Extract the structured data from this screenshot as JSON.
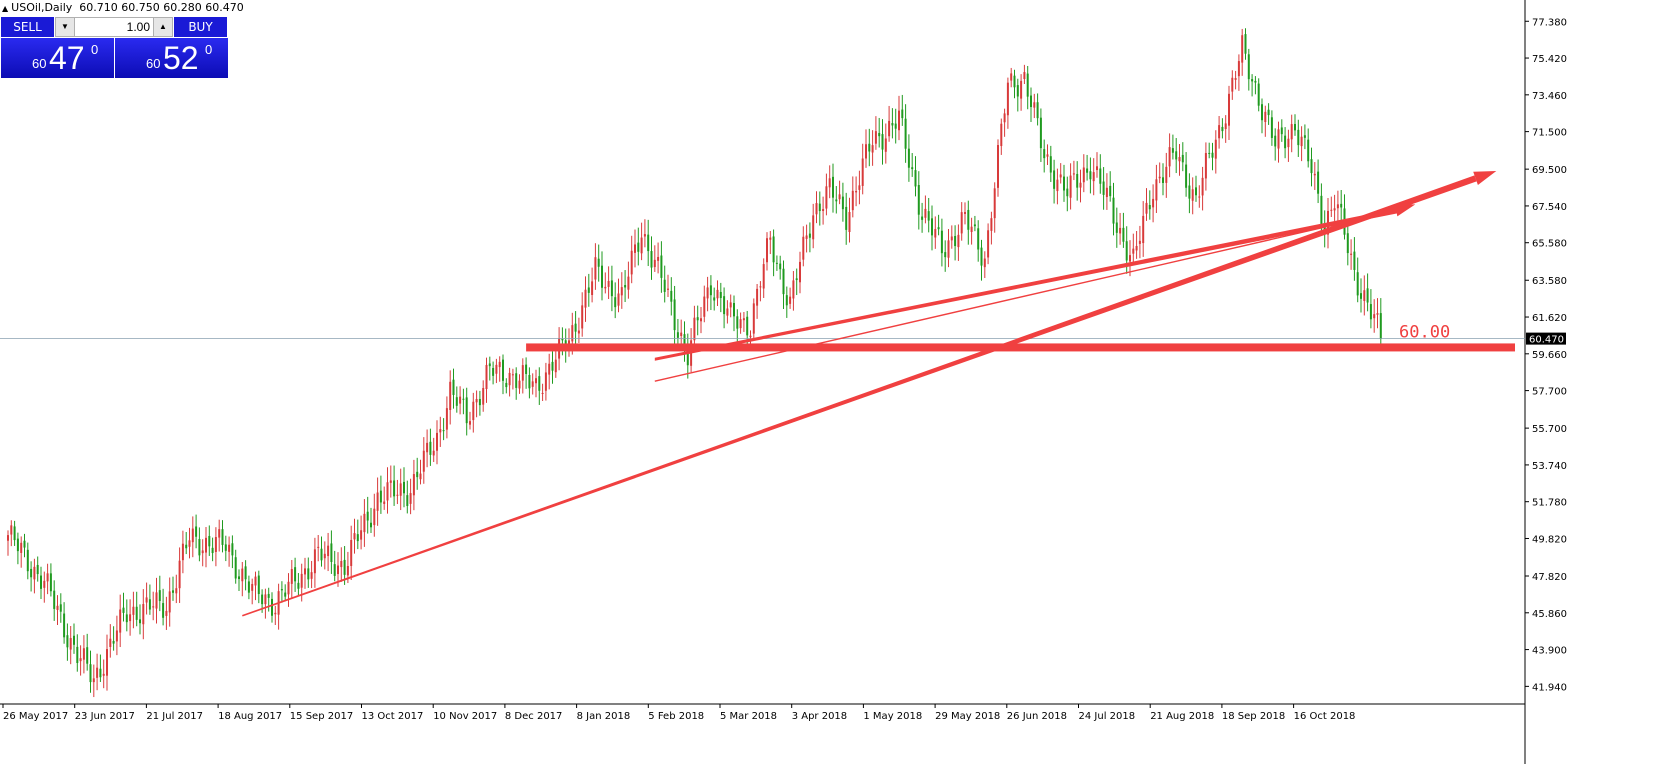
{
  "header": {
    "symbol": "USOil,Daily",
    "ohlc": "60.710 60.750 60.280 60.470"
  },
  "trade_panel": {
    "sell_label": "SELL",
    "buy_label": "BUY",
    "lot": "1.00",
    "sell_quote": {
      "small": "60",
      "big": "47",
      "sup": "0"
    },
    "buy_quote": {
      "small": "60",
      "big": "52",
      "sup": "0"
    }
  },
  "colors": {
    "bull": "#d83a3a",
    "bear": "#1f9a1f",
    "drawing": "#f04040",
    "panel": "#1a1ad6"
  },
  "chart_data": {
    "type": "candlestick",
    "symbol": "USOil",
    "timeframe": "Daily",
    "ylim": [
      41.0,
      78.3
    ],
    "y_ticks": [
      77.38,
      75.42,
      73.46,
      71.5,
      69.5,
      67.54,
      65.58,
      63.58,
      61.62,
      59.66,
      57.7,
      55.7,
      53.74,
      51.78,
      49.82,
      47.82,
      45.86,
      43.9,
      41.94
    ],
    "x_ticks": [
      "26 May 2017",
      "23 Jun 2017",
      "21 Jul 2017",
      "18 Aug 2017",
      "15 Sep 2017",
      "13 Oct 2017",
      "10 Nov 2017",
      "8 Dec 2017",
      "8 Jan 2018",
      "5 Feb 2018",
      "5 Mar 2018",
      "3 Apr 2018",
      "1 May 2018",
      "29 May 2018",
      "26 Jun 2018",
      "24 Jul 2018",
      "21 Aug 2018",
      "18 Sep 2018",
      "16 Oct 2018"
    ],
    "close_path": [
      [
        0,
        50.0
      ],
      [
        11,
        47.5
      ],
      [
        21,
        43.6
      ],
      [
        26,
        42.3
      ],
      [
        36,
        45.9
      ],
      [
        48,
        46.3
      ],
      [
        55,
        49.8
      ],
      [
        66,
        49.4
      ],
      [
        74,
        47.0
      ],
      [
        81,
        46.4
      ],
      [
        94,
        48.9
      ],
      [
        102,
        48.4
      ],
      [
        112,
        52.0
      ],
      [
        122,
        52.5
      ],
      [
        130,
        55.2
      ],
      [
        134,
        57.6
      ],
      [
        139,
        56.3
      ],
      [
        146,
        58.7
      ],
      [
        152,
        58.6
      ],
      [
        160,
        57.9
      ],
      [
        170,
        60.4
      ],
      [
        178,
        64.0
      ],
      [
        186,
        62.6
      ],
      [
        192,
        66.3
      ],
      [
        198,
        63.6
      ],
      [
        206,
        59.6
      ],
      [
        213,
        63.5
      ],
      [
        219,
        61.5
      ],
      [
        225,
        61.3
      ],
      [
        231,
        65.7
      ],
      [
        237,
        62.3
      ],
      [
        244,
        67.3
      ],
      [
        249,
        68.3
      ],
      [
        254,
        67.1
      ],
      [
        262,
        71.0
      ],
      [
        270,
        72.1
      ],
      [
        277,
        67.2
      ],
      [
        283,
        65.2
      ],
      [
        290,
        66.8
      ],
      [
        296,
        64.8
      ],
      [
        303,
        74.0
      ],
      [
        308,
        74.4
      ],
      [
        314,
        70.2
      ],
      [
        321,
        68.2
      ],
      [
        328,
        69.8
      ],
      [
        334,
        67.5
      ],
      [
        341,
        64.5
      ],
      [
        347,
        68.6
      ],
      [
        354,
        70.3
      ],
      [
        360,
        67.9
      ],
      [
        368,
        72.1
      ],
      [
        374,
        75.8
      ],
      [
        378,
        73.9
      ],
      [
        384,
        70.7
      ],
      [
        390,
        71.9
      ],
      [
        395,
        69.4
      ],
      [
        399,
        66.6
      ],
      [
        402,
        67.9
      ],
      [
        408,
        64.0
      ],
      [
        412,
        62.3
      ],
      [
        416,
        60.5
      ]
    ],
    "current_price": 60.47,
    "annotations": [
      {
        "type": "horizontal_level",
        "value": 60.0,
        "label": "60.00"
      },
      {
        "type": "trend_arrow",
        "from": {
          "bar": 71,
          "price": 45.7
        },
        "to": {
          "bar": 451,
          "price": 69.4
        }
      },
      {
        "type": "triangle",
        "points": [
          {
            "bar": 196,
            "price": 58.2
          },
          {
            "bar": 421,
            "price": 67.3
          },
          {
            "bar": 196,
            "price": 59.4
          }
        ]
      }
    ]
  }
}
